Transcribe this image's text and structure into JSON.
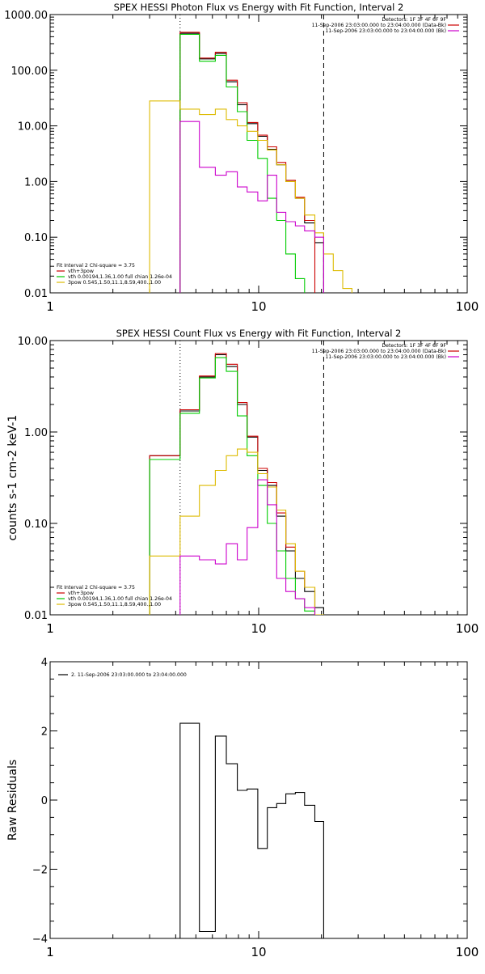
{
  "chart_data": [
    {
      "type": "line",
      "title": "SPEX HESSI Photon Flux vs Energy with Fit Function, Interval 2",
      "xlabel": "",
      "ylabel": "",
      "x_scale": "log",
      "y_scale": "log",
      "xlim": [
        1,
        100
      ],
      "ylim": [
        0.01,
        1000
      ],
      "x_ticks": [
        {
          "value": 1,
          "label": "1"
        },
        {
          "value": 10,
          "label": "10"
        },
        {
          "value": 100,
          "label": "100"
        }
      ],
      "y_ticks": [
        {
          "value": 0.01,
          "label": "0.01"
        },
        {
          "value": 0.1,
          "label": "0.10"
        },
        {
          "value": 1,
          "label": "1.00"
        },
        {
          "value": 10,
          "label": "10.00"
        },
        {
          "value": 100,
          "label": "100.00"
        },
        {
          "value": 1000,
          "label": "1000.00"
        }
      ],
      "header_lines": [
        "Detectors: 1F 3F 4F 6F 9F",
        "11-Sep-2006 23:03:00.000 to 23:04:00.000 (Data-Bk)",
        "11-Sep-2006 23:03:00.000 to 23:04:00.000 (Bk)"
      ],
      "header_colors": [
        "#000000",
        "#cc0000",
        "#cc00cc"
      ],
      "legend_title": "Fit Interval 2   Chi-square = 3.75",
      "legend_entries": [
        {
          "label": "vth+3pow",
          "color": "#cc0000"
        },
        {
          "label": "vth 0.00194,1.36,1.00  full chian 1.26e-04",
          "color": "#00cc00"
        },
        {
          "label": "3pow 0.545,1.50,11.1,8.59,400.,1.00",
          "color": "#ddbb00"
        }
      ],
      "vlines": [
        {
          "x": 4.2,
          "style": "dotted",
          "color": "#000000"
        },
        {
          "x": 20.5,
          "style": "dashed",
          "color": "#000000"
        }
      ],
      "bin_edges": [
        3,
        4.2,
        5.2,
        6.2,
        7.0,
        7.9,
        8.8,
        9.9,
        11.0,
        12.2,
        13.5,
        15.0,
        16.6,
        18.6,
        20.5,
        22.8,
        25.3,
        28.0
      ],
      "series": [
        {
          "name": "Data-Bk",
          "color": "#000000",
          "values": [
            null,
            460,
            160,
            200,
            62,
            24,
            11,
            6.5,
            3.8,
            2.0,
            1.0,
            0.5,
            0.18,
            0.08,
            null,
            null,
            null
          ]
        },
        {
          "name": "vth+3pow",
          "color": "#cc0000",
          "values": [
            null,
            480,
            165,
            210,
            66,
            26,
            11.5,
            6.8,
            4.2,
            2.2,
            1.05,
            0.52,
            0.2,
            null,
            null,
            null,
            null
          ]
        },
        {
          "name": "vth",
          "color": "#00cc00",
          "values": [
            null,
            440,
            145,
            185,
            50,
            18,
            5.5,
            2.6,
            0.5,
            0.2,
            0.05,
            0.018,
            null,
            null,
            null,
            null,
            null
          ]
        },
        {
          "name": "3pow",
          "color": "#ddbb00",
          "values": [
            28,
            20,
            16,
            20,
            13,
            10,
            8,
            5.5,
            3.7,
            2.0,
            1.0,
            0.5,
            0.25,
            0.12,
            0.05,
            0.025,
            0.012
          ]
        },
        {
          "name": "Bk",
          "color": "#cc00cc",
          "values": [
            null,
            12,
            1.8,
            1.3,
            1.5,
            0.8,
            0.65,
            0.45,
            1.3,
            0.28,
            0.19,
            0.16,
            0.13,
            0.1,
            null,
            null,
            null
          ]
        }
      ]
    },
    {
      "type": "line",
      "title": "SPEX HESSI Count Flux vs Energy with Fit Function, Interval 2",
      "xlabel": "",
      "ylabel": "counts s-1 cm-2 keV-1",
      "x_scale": "log",
      "y_scale": "log",
      "xlim": [
        1,
        100
      ],
      "ylim": [
        0.01,
        10
      ],
      "x_ticks": [
        {
          "value": 1,
          "label": "1"
        },
        {
          "value": 10,
          "label": "10"
        },
        {
          "value": 100,
          "label": "100"
        }
      ],
      "y_ticks": [
        {
          "value": 0.01,
          "label": "0.01"
        },
        {
          "value": 0.1,
          "label": "0.10"
        },
        {
          "value": 1,
          "label": "1.00"
        },
        {
          "value": 10,
          "label": "10.00"
        }
      ],
      "header_lines": [
        "Detectors: 1F 3F 4F 6F 9F",
        "11-Sep-2006 23:03:00.000 to 23:04:00.000 (Data-Bk)",
        "11-Sep-2006 23:03:00.000 to 23:04:00.000 (Bk)"
      ],
      "header_colors": [
        "#000000",
        "#cc0000",
        "#cc00cc"
      ],
      "legend_title": "Fit Interval 2   Chi-square = 3.75",
      "legend_entries": [
        {
          "label": "vth+3pow",
          "color": "#cc0000"
        },
        {
          "label": "vth 0.00194,1.36,1.00  full chian 1.26e-04",
          "color": "#00cc00"
        },
        {
          "label": "3pow 0.545,1.50,11.1,8.59,400.,1.00",
          "color": "#ddbb00"
        }
      ],
      "vlines": [
        {
          "x": 4.2,
          "style": "dotted",
          "color": "#000000"
        },
        {
          "x": 20.5,
          "style": "dashed",
          "color": "#000000"
        }
      ],
      "bin_edges": [
        3,
        4.2,
        5.2,
        6.2,
        7.0,
        7.9,
        8.8,
        9.9,
        11.0,
        12.2,
        13.5,
        15.0,
        16.6,
        18.6,
        20.5
      ],
      "series": [
        {
          "name": "Data-Bk",
          "color": "#000000",
          "values": [
            0.55,
            1.7,
            4.0,
            7.0,
            5.2,
            2.0,
            0.88,
            0.38,
            0.26,
            0.12,
            0.05,
            0.025,
            0.018,
            0.012
          ]
        },
        {
          "name": "vth+3pow",
          "color": "#cc0000",
          "values": [
            0.55,
            1.75,
            4.1,
            7.2,
            5.5,
            2.1,
            0.9,
            0.4,
            0.28,
            0.13,
            0.055,
            0.03,
            0.02,
            null
          ]
        },
        {
          "name": "vth",
          "color": "#00cc00",
          "values": [
            0.5,
            1.6,
            3.9,
            6.5,
            4.6,
            1.5,
            0.55,
            0.26,
            0.1,
            0.05,
            0.025,
            0.015,
            0.011,
            null
          ]
        },
        {
          "name": "3pow",
          "color": "#ddbb00",
          "values": [
            0.044,
            0.12,
            0.26,
            0.38,
            0.55,
            0.65,
            0.6,
            0.35,
            0.25,
            0.14,
            0.06,
            0.03,
            0.02,
            0.01
          ]
        },
        {
          "name": "Bk",
          "color": "#cc00cc",
          "values": [
            null,
            0.044,
            0.04,
            0.036,
            0.06,
            0.04,
            0.09,
            0.3,
            0.16,
            0.025,
            0.018,
            0.015,
            0.012,
            null
          ]
        }
      ]
    },
    {
      "type": "line",
      "title": "",
      "xlabel": "",
      "ylabel": "Raw Residuals",
      "x_scale": "log",
      "y_scale": "linear",
      "xlim": [
        1,
        100
      ],
      "ylim": [
        -4,
        4
      ],
      "x_ticks": [
        {
          "value": 1,
          "label": "1"
        },
        {
          "value": 10,
          "label": "10"
        },
        {
          "value": 100,
          "label": "100"
        }
      ],
      "y_ticks": [
        {
          "value": -4,
          "label": "−4"
        },
        {
          "value": -2,
          "label": "−2"
        },
        {
          "value": 0,
          "label": "0"
        },
        {
          "value": 2,
          "label": "2"
        },
        {
          "value": 4,
          "label": "4"
        }
      ],
      "legend_entries": [
        {
          "label": "2. 11-Sep-2006 23:03:00.000 to 23:04:00.000",
          "color": "#000000"
        }
      ],
      "bin_edges": [
        4.2,
        5.2,
        6.2,
        7.0,
        7.9,
        8.8,
        9.9,
        11.0,
        12.2,
        13.5,
        15.0,
        16.6,
        18.6,
        20.5
      ],
      "series": [
        {
          "name": "residuals",
          "color": "#000000",
          "values": [
            2.22,
            -3.8,
            1.85,
            1.05,
            0.28,
            0.32,
            -1.4,
            -0.22,
            -0.1,
            0.18,
            0.22,
            -0.15,
            -0.62
          ]
        }
      ]
    }
  ]
}
